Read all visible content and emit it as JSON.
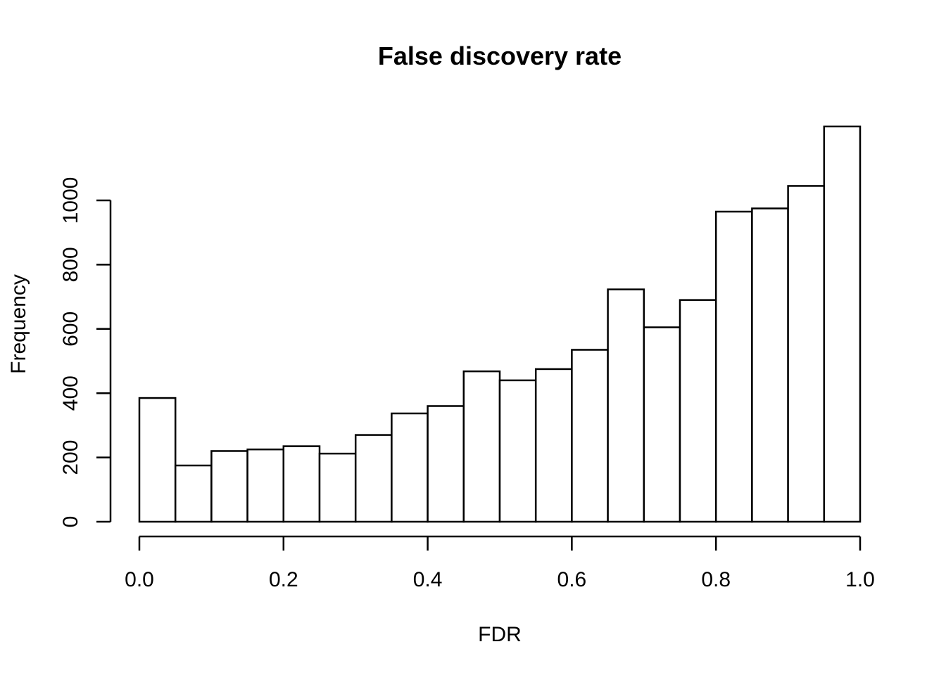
{
  "chart_data": {
    "type": "bar",
    "title": "False discovery rate",
    "xlabel": "FDR",
    "ylabel": "Frequency",
    "bin_edges": [
      0.0,
      0.05,
      0.1,
      0.15,
      0.2,
      0.25,
      0.3,
      0.35,
      0.4,
      0.45,
      0.5,
      0.55,
      0.6,
      0.65,
      0.7,
      0.75,
      0.8,
      0.85,
      0.9,
      0.95,
      1.0
    ],
    "values": [
      385,
      175,
      220,
      225,
      235,
      212,
      270,
      337,
      360,
      468,
      440,
      475,
      535,
      723,
      605,
      690,
      965,
      975,
      1045,
      1230
    ],
    "xlim": [
      0.0,
      1.0
    ],
    "ylim": [
      0,
      1200
    ],
    "x_ticks": [
      0.0,
      0.2,
      0.4,
      0.6,
      0.8,
      1.0
    ],
    "x_tick_labels": [
      "0.0",
      "0.2",
      "0.4",
      "0.6",
      "0.8",
      "1.0"
    ],
    "y_ticks": [
      0,
      200,
      400,
      600,
      800,
      1000
    ],
    "y_tick_labels": [
      "0",
      "200",
      "400",
      "600",
      "800",
      "1000"
    ],
    "grid": false,
    "colors": {
      "bar_fill": "#ffffff",
      "bar_stroke": "#000000"
    }
  }
}
